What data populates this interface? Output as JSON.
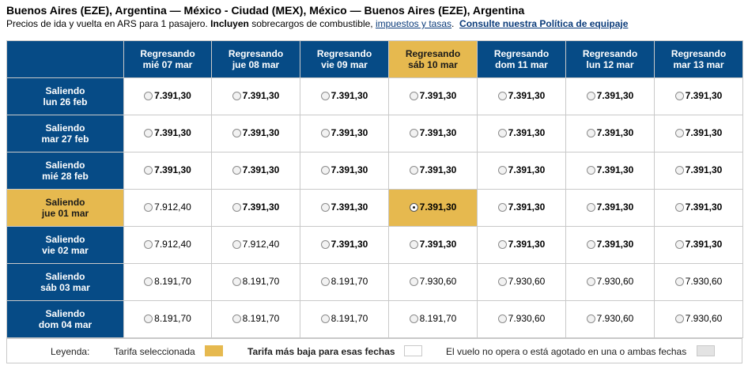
{
  "header": {
    "title": "Buenos Aires (EZE), Argentina — México - Ciudad (MEX), México — Buenos Aires (EZE), Argentina",
    "subtitle_prefix": "Precios de ida y vuelta en ARS para 1 pasajero.",
    "subtitle_bold": "Incluyen",
    "subtitle_mid": "sobrecargos de combustible,",
    "taxes_link": "impuestos y tasas",
    "subtitle_dot": ".",
    "baggage_link": "Consulte nuestra Política de equipaje"
  },
  "columns": [
    {
      "label": "Regresando",
      "date": "mié 07 mar",
      "selected": false
    },
    {
      "label": "Regresando",
      "date": "jue 08 mar",
      "selected": false
    },
    {
      "label": "Regresando",
      "date": "vie 09 mar",
      "selected": false
    },
    {
      "label": "Regresando",
      "date": "sáb 10 mar",
      "selected": true
    },
    {
      "label": "Regresando",
      "date": "dom 11 mar",
      "selected": false
    },
    {
      "label": "Regresando",
      "date": "lun 12 mar",
      "selected": false
    },
    {
      "label": "Regresando",
      "date": "mar 13 mar",
      "selected": false
    }
  ],
  "rows": [
    {
      "label": "Saliendo",
      "date": "lun 26 feb",
      "selected": false,
      "prices": [
        "7.391,30",
        "7.391,30",
        "7.391,30",
        "7.391,30",
        "7.391,30",
        "7.391,30",
        "7.391,30"
      ],
      "lowest": [
        true,
        true,
        true,
        true,
        true,
        true,
        true
      ]
    },
    {
      "label": "Saliendo",
      "date": "mar 27 feb",
      "selected": false,
      "prices": [
        "7.391,30",
        "7.391,30",
        "7.391,30",
        "7.391,30",
        "7.391,30",
        "7.391,30",
        "7.391,30"
      ],
      "lowest": [
        true,
        true,
        true,
        true,
        true,
        true,
        true
      ]
    },
    {
      "label": "Saliendo",
      "date": "mié 28 feb",
      "selected": false,
      "prices": [
        "7.391,30",
        "7.391,30",
        "7.391,30",
        "7.391,30",
        "7.391,30",
        "7.391,30",
        "7.391,30"
      ],
      "lowest": [
        true,
        true,
        true,
        true,
        true,
        true,
        true
      ]
    },
    {
      "label": "Saliendo",
      "date": "jue 01 mar",
      "selected": true,
      "prices": [
        "7.912,40",
        "7.391,30",
        "7.391,30",
        "7.391,30",
        "7.391,30",
        "7.391,30",
        "7.391,30"
      ],
      "lowest": [
        false,
        true,
        true,
        true,
        true,
        true,
        true
      ]
    },
    {
      "label": "Saliendo",
      "date": "vie 02 mar",
      "selected": false,
      "prices": [
        "7.912,40",
        "7.912,40",
        "7.391,30",
        "7.391,30",
        "7.391,30",
        "7.391,30",
        "7.391,30"
      ],
      "lowest": [
        false,
        false,
        true,
        true,
        true,
        true,
        true
      ]
    },
    {
      "label": "Saliendo",
      "date": "sáb 03 mar",
      "selected": false,
      "prices": [
        "8.191,70",
        "8.191,70",
        "8.191,70",
        "7.930,60",
        "7.930,60",
        "7.930,60",
        "7.930,60"
      ],
      "lowest": [
        false,
        false,
        false,
        false,
        false,
        false,
        false
      ]
    },
    {
      "label": "Saliendo",
      "date": "dom 04 mar",
      "selected": false,
      "prices": [
        "8.191,70",
        "8.191,70",
        "8.191,70",
        "8.191,70",
        "7.930,60",
        "7.930,60",
        "7.930,60"
      ],
      "lowest": [
        false,
        false,
        false,
        false,
        false,
        false,
        false
      ]
    }
  ],
  "selected_fare": {
    "row": 3,
    "col": 3
  },
  "legend": {
    "label": "Leyenda:",
    "selected": "Tarifa seleccionada",
    "lowest": "Tarifa más baja para esas fechas",
    "unavailable": "El vuelo no opera o está agotado en una o ambas fechas"
  },
  "colors": {
    "header_blue": "#064b86",
    "selected_gold": "#e6b94f",
    "unavailable_gray": "#e3e3e3",
    "link_blue": "#0a3b7a"
  }
}
